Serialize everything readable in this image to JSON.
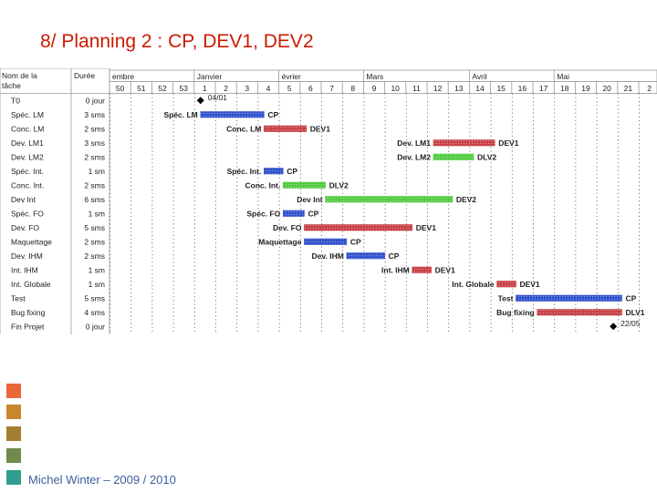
{
  "slide": {
    "title": "8/ Planning 2 : CP, DEV1, DEV2",
    "footer": "Michel Winter – 2009 / 2010",
    "accent_squares": [
      "#e8683a",
      "#c8862d",
      "#a57e33",
      "#6f8a4a",
      "#2f9e8e"
    ]
  },
  "chart_data": {
    "type": "gantt",
    "columns": [
      "Nom de la tâche",
      "Durée"
    ],
    "months": [
      {
        "label": "embre",
        "start": 0
      },
      {
        "label": "Janvier",
        "start": 4
      },
      {
        "label": "évrier",
        "start": 8
      },
      {
        "label": "Mars",
        "start": 12
      },
      {
        "label": "Avril",
        "start": 17
      },
      {
        "label": "Mai",
        "start": 21
      }
    ],
    "weeks": [
      "50",
      "51",
      "52",
      "53",
      "1",
      "2",
      "3",
      "4",
      "5",
      "6",
      "7",
      "8",
      "9",
      "10",
      "11",
      "12",
      "13",
      "14",
      "15",
      "16",
      "17",
      "18",
      "19",
      "20",
      "21",
      "2"
    ],
    "colors": {
      "blue": "#3355cc",
      "red": "#c84448",
      "green": "#55cc44",
      "milestone": "#000000"
    },
    "tasks": [
      {
        "name": "T0",
        "duration": "0 jour",
        "type": "milestone",
        "start": 4.3,
        "label_right": "04/01"
      },
      {
        "name": "Spéc. LM",
        "duration": "3 sms",
        "color": "blue",
        "start": 4.3,
        "end": 7.3,
        "label_left": "Spéc. LM",
        "label_right": "CP"
      },
      {
        "name": "Conc. LM",
        "duration": "2 sms",
        "color": "red",
        "start": 7.3,
        "end": 9.3,
        "label_left": "Conc. LM",
        "label_right": "DEV1"
      },
      {
        "name": "Dev. LM1",
        "duration": "3 sms",
        "color": "red",
        "start": 15.3,
        "end": 18.2,
        "label_left": "Dev. LM1",
        "label_right": "DEV1"
      },
      {
        "name": "Dev. LM2",
        "duration": "2 sms",
        "color": "green",
        "start": 15.3,
        "end": 17.2,
        "label_left": "Dev. LM2",
        "label_right": "DLV2"
      },
      {
        "name": "Spéc. Int.",
        "duration": "1 sm",
        "color": "blue",
        "start": 7.3,
        "end": 8.2,
        "label_left": "Spéc. Int.",
        "label_right": "CP"
      },
      {
        "name": "Conc. Int.",
        "duration": "2 sms",
        "color": "green",
        "start": 8.2,
        "end": 10.2,
        "label_left": "Conc. Int.",
        "label_right": "DLV2"
      },
      {
        "name": "Dev Int",
        "duration": "6 sms",
        "color": "green",
        "start": 10.2,
        "end": 16.2,
        "label_left": "Dev Int",
        "label_right": "DEV2"
      },
      {
        "name": "Spéc. FO",
        "duration": "1 sm",
        "color": "blue",
        "start": 8.2,
        "end": 9.2,
        "label_left": "Spéc. FO",
        "label_right": "CP"
      },
      {
        "name": "Dev. FO",
        "duration": "5 sms",
        "color": "red",
        "start": 9.2,
        "end": 14.3,
        "label_left": "Dev. FO",
        "label_right": "DEV1"
      },
      {
        "name": "Maquettage",
        "duration": "2 sms",
        "color": "blue",
        "start": 9.2,
        "end": 11.2,
        "label_left": "Maquettage",
        "label_right": "CP"
      },
      {
        "name": "Dev. IHM",
        "duration": "2 sms",
        "color": "blue",
        "start": 11.2,
        "end": 13.0,
        "label_left": "Dev. IHM",
        "label_right": "CP"
      },
      {
        "name": "Int. IHM",
        "duration": "1 sm",
        "color": "red",
        "start": 14.3,
        "end": 15.2,
        "label_left": "Int. IHM",
        "label_right": "DEV1"
      },
      {
        "name": "Int. Globale",
        "duration": "1 sm",
        "color": "red",
        "start": 18.3,
        "end": 19.2,
        "label_left": "Int. Globale",
        "label_right": "DEV1"
      },
      {
        "name": "Test",
        "duration": "5 sms",
        "color": "blue",
        "start": 19.2,
        "end": 24.2,
        "label_left": "Test",
        "label_right": "CP"
      },
      {
        "name": "Bug fixing",
        "duration": "4 sms",
        "color": "red",
        "start": 20.2,
        "end": 24.2,
        "label_left": "Bug fixing",
        "label_right": "DLV1"
      },
      {
        "name": "Fin Projet",
        "duration": "0 jour",
        "type": "milestone",
        "start": 23.8,
        "label_right": "22/05"
      }
    ]
  }
}
